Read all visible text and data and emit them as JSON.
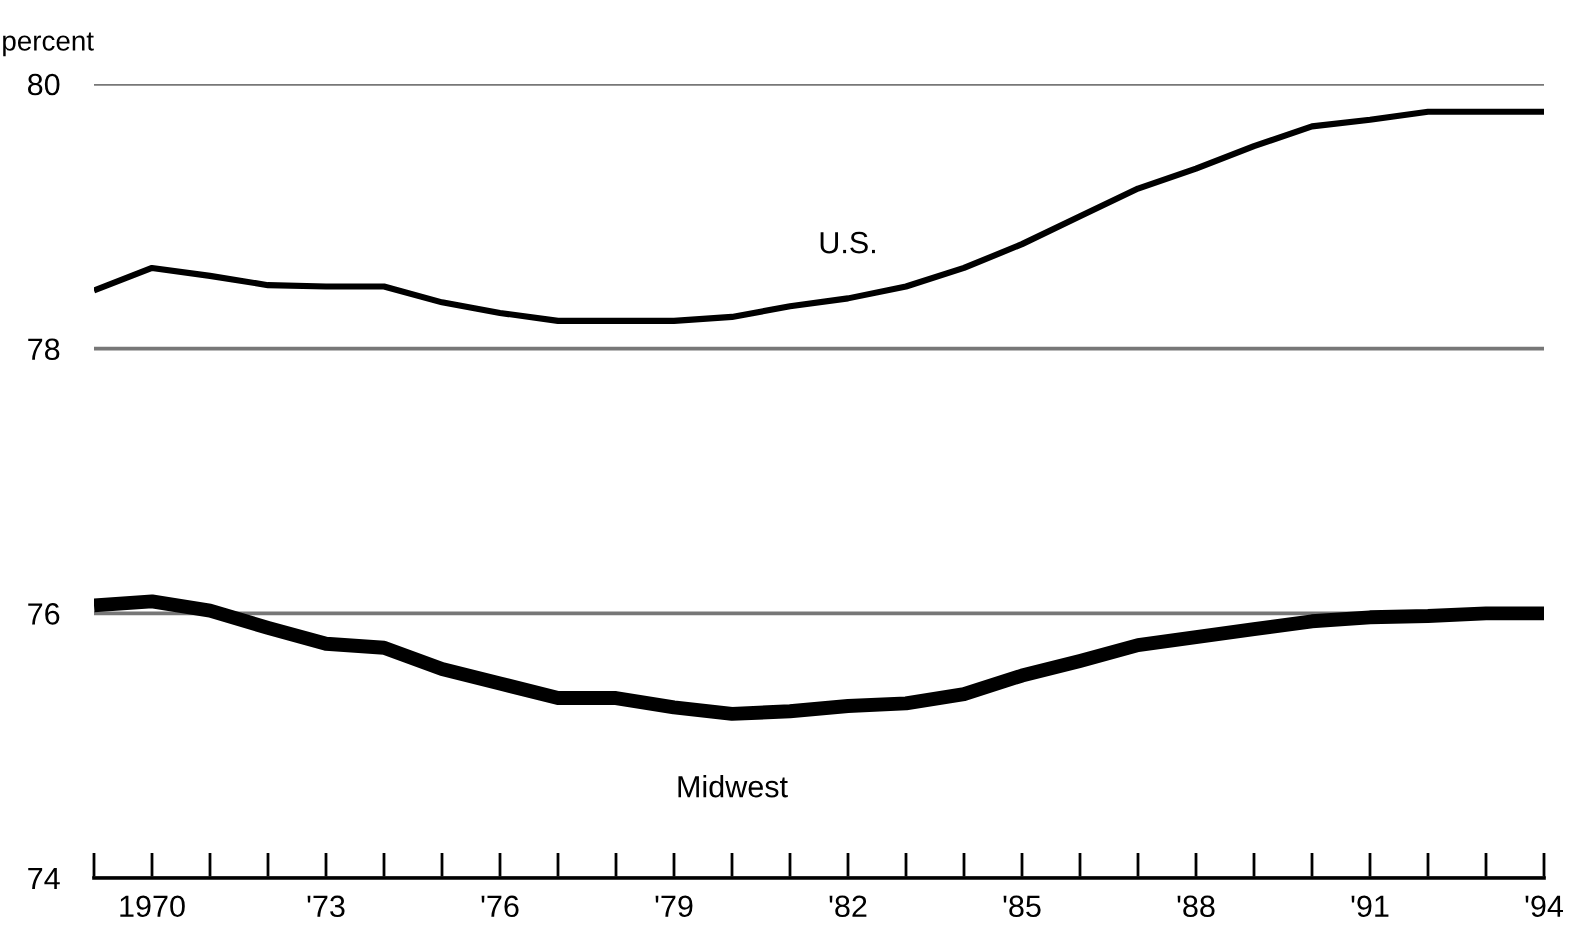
{
  "chart_data": {
    "type": "line",
    "ylabel": "percent",
    "x": [
      1969,
      1970,
      1971,
      1972,
      1973,
      1974,
      1975,
      1976,
      1977,
      1978,
      1979,
      1980,
      1981,
      1982,
      1983,
      1984,
      1985,
      1986,
      1987,
      1988,
      1989,
      1990,
      1991,
      1992,
      1993,
      1994
    ],
    "series": [
      {
        "name": "U.S.",
        "color": "#000000",
        "values": [
          78.44,
          78.61,
          78.55,
          78.48,
          78.47,
          78.47,
          78.35,
          78.27,
          78.21,
          78.21,
          78.21,
          78.24,
          78.32,
          78.38,
          78.47,
          78.61,
          78.79,
          79.0,
          79.21,
          79.36,
          79.53,
          79.68,
          79.73,
          79.79,
          79.79,
          79.79
        ]
      },
      {
        "name": "Midwest",
        "color": "#000000",
        "values": [
          76.06,
          76.09,
          76.02,
          75.89,
          75.77,
          75.74,
          75.58,
          75.47,
          75.36,
          75.36,
          75.29,
          75.24,
          75.26,
          75.3,
          75.32,
          75.39,
          75.53,
          75.64,
          75.76,
          75.82,
          75.88,
          75.94,
          75.97,
          75.98,
          76.0,
          76.0
        ]
      }
    ],
    "xlim": [
      1969,
      1994
    ],
    "xticks": [
      {
        "value": 1969,
        "label": null
      },
      {
        "value": 1970,
        "label": "1970"
      },
      {
        "value": 1971,
        "label": null
      },
      {
        "value": 1972,
        "label": null
      },
      {
        "value": 1973,
        "label": "'73"
      },
      {
        "value": 1974,
        "label": null
      },
      {
        "value": 1975,
        "label": null
      },
      {
        "value": 1976,
        "label": "'76"
      },
      {
        "value": 1977,
        "label": null
      },
      {
        "value": 1978,
        "label": null
      },
      {
        "value": 1979,
        "label": "'79"
      },
      {
        "value": 1980,
        "label": null
      },
      {
        "value": 1981,
        "label": null
      },
      {
        "value": 1982,
        "label": "'82"
      },
      {
        "value": 1983,
        "label": null
      },
      {
        "value": 1984,
        "label": null
      },
      {
        "value": 1985,
        "label": "'85"
      },
      {
        "value": 1986,
        "label": null
      },
      {
        "value": 1987,
        "label": null
      },
      {
        "value": 1988,
        "label": "'88"
      },
      {
        "value": 1989,
        "label": null
      },
      {
        "value": 1990,
        "label": null
      },
      {
        "value": 1991,
        "label": "'91"
      },
      {
        "value": 1992,
        "label": null
      },
      {
        "value": 1993,
        "label": null
      },
      {
        "value": 1994,
        "label": "'94"
      }
    ],
    "ylim": [
      74,
      80
    ],
    "yticks": [
      74,
      76,
      78,
      80
    ],
    "grid": "y",
    "legend": false,
    "marker": "none",
    "line_style": "solid"
  }
}
